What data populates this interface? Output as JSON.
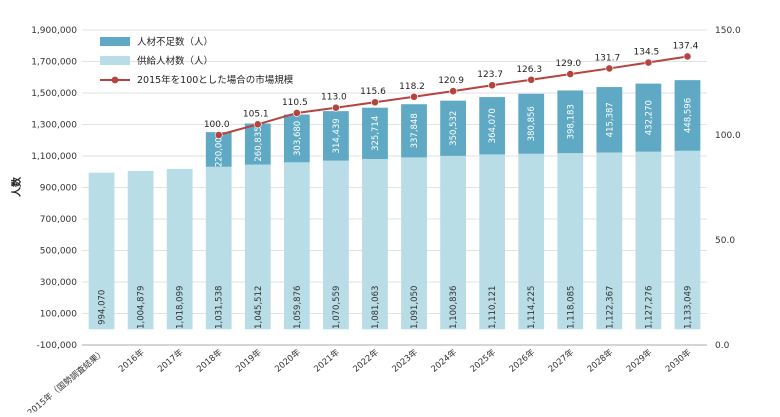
{
  "chart_data": {
    "type": "bar+line",
    "ylabel": "人数",
    "categories": [
      "2015年（国勢調査結果）",
      "2016年",
      "2017年",
      "2018年",
      "2019年",
      "2020年",
      "2021年",
      "2022年",
      "2023年",
      "2024年",
      "2025年",
      "2026年",
      "2027年",
      "2028年",
      "2029年",
      "2030年"
    ],
    "series": [
      {
        "name": "供給人材数（人）",
        "kind": "stacked-bar",
        "axis": "left",
        "color": "#b8dde7",
        "values": [
          994070,
          1004879,
          1018099,
          1031538,
          1045512,
          1059876,
          1070559,
          1081063,
          1091050,
          1100836,
          1110121,
          1114225,
          1118085,
          1122367,
          1127276,
          1133049
        ],
        "labels": [
          "994,070",
          "1,004,879",
          "1,018,099",
          "1,031,538",
          "1,045,512",
          "1,059,876",
          "1,070,559",
          "1,081,063",
          "1,091,050",
          "1,100,836",
          "1,110,121",
          "1,114,225",
          "1,118,085",
          "1,122,367",
          "1,127,276",
          "1,133,049"
        ]
      },
      {
        "name": "人材不足数（人）",
        "kind": "stacked-bar",
        "axis": "left",
        "color": "#5fa9c4",
        "values": [
          null,
          null,
          null,
          220000,
          260835,
          303680,
          314439,
          325714,
          337848,
          350532,
          364070,
          380856,
          398183,
          415387,
          432270,
          448596
        ],
        "labels": [
          "",
          "",
          "",
          "220,000",
          "260,835",
          "303,680",
          "314,439",
          "325,714",
          "337,848",
          "350,532",
          "364,070",
          "380,856",
          "398,183",
          "415,387",
          "432,270",
          "448,596"
        ]
      },
      {
        "name": "2015年を100とした場合の市場規模",
        "kind": "line",
        "axis": "right",
        "color": "#b7433f",
        "values": [
          null,
          null,
          null,
          100.0,
          105.1,
          110.5,
          113.0,
          115.6,
          118.2,
          120.9,
          123.7,
          126.3,
          129.0,
          131.7,
          134.5,
          137.4
        ],
        "labels": [
          "",
          "",
          "",
          "100.0",
          "105.1",
          "110.5",
          "113.0",
          "115.6",
          "118.2",
          "120.9",
          "123.7",
          "126.3",
          "129.0",
          "131.7",
          "134.5",
          "137.4"
        ]
      }
    ],
    "left_axis": {
      "ylim": [
        -100000,
        1900000
      ],
      "ticks": [
        -100000,
        100000,
        300000,
        500000,
        700000,
        900000,
        1100000,
        1300000,
        1500000,
        1700000,
        1900000
      ],
      "tick_labels": [
        "-100,000",
        "100,000",
        "300,000",
        "500,000",
        "700,000",
        "900,000",
        "1,100,000",
        "1,300,000",
        "1,500,000",
        "1,700,000",
        "1,900,000"
      ]
    },
    "right_axis": {
      "ylim": [
        0,
        150
      ],
      "ticks": [
        0,
        50,
        100,
        150
      ],
      "tick_labels": [
        "0.0",
        "50.0",
        "100.0",
        "150.0"
      ]
    },
    "grid": true,
    "legend_position": "top-left"
  }
}
